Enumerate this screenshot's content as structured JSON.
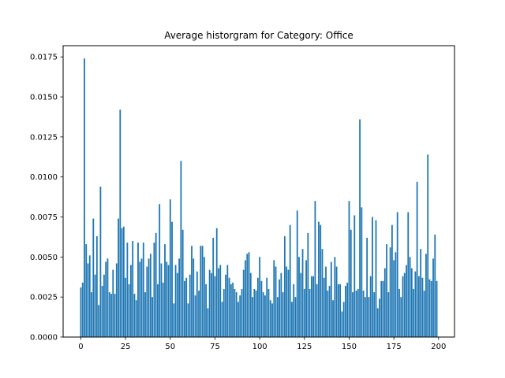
{
  "chart_data": {
    "type": "bar",
    "title": "Average historgram for Category: Office",
    "xlabel": "",
    "ylabel": "",
    "xlim": [
      -9.9,
      208.9
    ],
    "ylim": [
      0,
      0.0182
    ],
    "xticks": [
      0,
      25,
      50,
      75,
      100,
      125,
      150,
      175,
      200
    ],
    "xtick_labels": [
      "0",
      "25",
      "50",
      "75",
      "100",
      "125",
      "150",
      "175",
      "200"
    ],
    "yticks": [
      0,
      0.0025,
      0.005,
      0.0075,
      0.01,
      0.0125,
      0.015,
      0.0175
    ],
    "ytick_labels": [
      "0.0000",
      "0.0025",
      "0.0050",
      "0.0075",
      "0.0100",
      "0.0125",
      "0.0150",
      "0.0175"
    ],
    "bar_color": "#1f77b4",
    "grid": false,
    "x_start": 0,
    "values": [
      0.0031,
      0.0034,
      0.0174,
      0.0058,
      0.0046,
      0.0051,
      0.0028,
      0.0074,
      0.0039,
      0.0063,
      0.002,
      0.0094,
      0.0032,
      0.0039,
      0.0047,
      0.0049,
      0.0028,
      0.0027,
      0.0042,
      0.0027,
      0.0046,
      0.0074,
      0.0142,
      0.0068,
      0.0069,
      0.0037,
      0.0059,
      0.0033,
      0.0045,
      0.006,
      0.0027,
      0.0023,
      0.0059,
      0.0047,
      0.0049,
      0.0059,
      0.0028,
      0.0044,
      0.0049,
      0.0052,
      0.0025,
      0.0059,
      0.0065,
      0.0033,
      0.0083,
      0.0046,
      0.0034,
      0.0058,
      0.0047,
      0.0045,
      0.0086,
      0.0072,
      0.0021,
      0.0045,
      0.004,
      0.0049,
      0.011,
      0.0067,
      0.0035,
      0.0037,
      0.0021,
      0.0039,
      0.0057,
      0.0049,
      0.0026,
      0.0041,
      0.0029,
      0.0057,
      0.0057,
      0.005,
      0.0033,
      0.0018,
      0.0042,
      0.004,
      0.0062,
      0.0038,
      0.0068,
      0.0043,
      0.0045,
      0.0022
    ]
  }
}
